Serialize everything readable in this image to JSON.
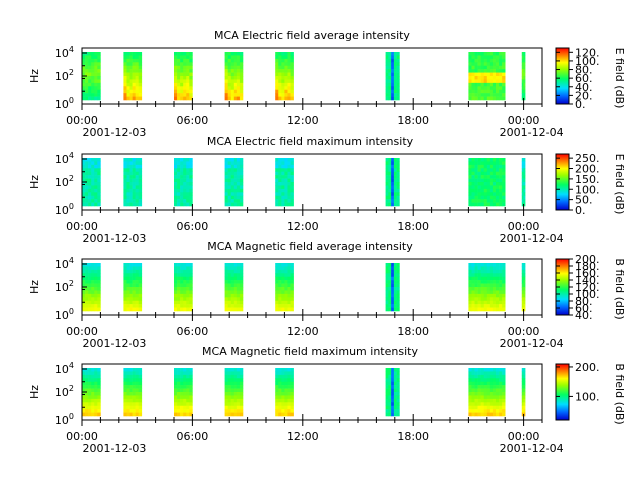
{
  "chart_data": [
    {
      "type": "heatmap",
      "title": "MCA  Electric field average intensity",
      "ylabel": "Hz",
      "colorbar_label": "E field (dB)",
      "colorbar_ticks": [
        "0.",
        "20.",
        "40.",
        "60.",
        "80.",
        "100.",
        "120."
      ],
      "colorbar_range": [
        0,
        130
      ],
      "y_ticks": [
        {
          "base": "10",
          "exp": "0"
        },
        {
          "base": "10",
          "exp": "2"
        },
        {
          "base": "10",
          "exp": "4"
        }
      ],
      "y_scale": "log",
      "x_ticks": [
        "00:00",
        "06:00",
        "12:00",
        "18:00",
        "00:00"
      ],
      "x_dates": [
        "2001-12-03",
        "2001-12-04"
      ],
      "x_range": [
        "2001-12-03 00:00",
        "2001-12-04 01:00"
      ],
      "data_segments": [
        {
          "start": "00:00",
          "end": "01:00",
          "pattern": "mid-high"
        },
        {
          "start": "02:15",
          "end": "03:15",
          "pattern": "peak-low"
        },
        {
          "start": "05:00",
          "end": "06:00",
          "pattern": "peak-low"
        },
        {
          "start": "07:45",
          "end": "08:45",
          "pattern": "peak-low"
        },
        {
          "start": "10:30",
          "end": "11:30",
          "pattern": "peak-low"
        },
        {
          "start": "16:30",
          "end": "17:15",
          "pattern": "spike"
        },
        {
          "start": "21:00",
          "end": "23:00",
          "pattern": "banded"
        },
        {
          "start": "23:55",
          "end": "00:05",
          "pattern": "mid-high"
        }
      ]
    },
    {
      "type": "heatmap",
      "title": "MCA  Electric field maximum intensity",
      "ylabel": "Hz",
      "colorbar_label": "E field (dB)",
      "colorbar_ticks": [
        "0.",
        "50.",
        "100.",
        "150.",
        "200.",
        "250."
      ],
      "colorbar_range": [
        0,
        270
      ],
      "y_ticks": [
        {
          "base": "10",
          "exp": "0"
        },
        {
          "base": "10",
          "exp": "2"
        },
        {
          "base": "10",
          "exp": "4"
        }
      ],
      "y_scale": "log",
      "x_ticks": [
        "00:00",
        "06:00",
        "12:00",
        "18:00",
        "00:00"
      ],
      "x_dates": [
        "2001-12-03",
        "2001-12-04"
      ],
      "x_range": [
        "2001-12-03 00:00",
        "2001-12-04 01:00"
      ],
      "data_segments": [
        {
          "start": "00:00",
          "end": "01:00",
          "pattern": "cyan"
        },
        {
          "start": "02:15",
          "end": "03:15",
          "pattern": "cyan"
        },
        {
          "start": "05:00",
          "end": "06:00",
          "pattern": "cyan"
        },
        {
          "start": "07:45",
          "end": "08:45",
          "pattern": "cyan"
        },
        {
          "start": "10:30",
          "end": "11:30",
          "pattern": "cyan"
        },
        {
          "start": "16:30",
          "end": "17:15",
          "pattern": "spike"
        },
        {
          "start": "21:00",
          "end": "23:00",
          "pattern": "cyan-green"
        },
        {
          "start": "23:55",
          "end": "00:05",
          "pattern": "cyan"
        }
      ]
    },
    {
      "type": "heatmap",
      "title": "MCA  Magnetic field average intensity",
      "ylabel": "Hz",
      "colorbar_label": "B field (dB)",
      "colorbar_ticks": [
        "40.",
        "60.",
        "80.",
        "100.",
        "120.",
        "140.",
        "160.",
        "180.",
        "200."
      ],
      "colorbar_range": [
        40,
        200
      ],
      "y_ticks": [
        {
          "base": "10",
          "exp": "0"
        },
        {
          "base": "10",
          "exp": "2"
        },
        {
          "base": "10",
          "exp": "4"
        }
      ],
      "y_scale": "log",
      "x_ticks": [
        "00:00",
        "06:00",
        "12:00",
        "18:00",
        "00:00"
      ],
      "x_dates": [
        "2001-12-03",
        "2001-12-04"
      ],
      "x_range": [
        "2001-12-03 00:00",
        "2001-12-04 01:00"
      ],
      "data_segments": [
        {
          "start": "00:00",
          "end": "01:00",
          "pattern": "gradient"
        },
        {
          "start": "02:15",
          "end": "03:15",
          "pattern": "gradient"
        },
        {
          "start": "05:00",
          "end": "06:00",
          "pattern": "gradient"
        },
        {
          "start": "07:45",
          "end": "08:45",
          "pattern": "gradient"
        },
        {
          "start": "10:30",
          "end": "11:30",
          "pattern": "gradient"
        },
        {
          "start": "16:30",
          "end": "17:15",
          "pattern": "spike"
        },
        {
          "start": "21:00",
          "end": "23:00",
          "pattern": "gradient"
        },
        {
          "start": "23:55",
          "end": "00:05",
          "pattern": "gradient"
        }
      ]
    },
    {
      "type": "heatmap",
      "title": "MCA  Magnetic field maximum intensity",
      "ylabel": "Hz",
      "colorbar_label": "B field (dB)",
      "colorbar_ticks": [
        "100.",
        "200."
      ],
      "colorbar_range": [
        20,
        210
      ],
      "y_ticks": [
        {
          "base": "10",
          "exp": "0"
        },
        {
          "base": "10",
          "exp": "2"
        },
        {
          "base": "10",
          "exp": "4"
        }
      ],
      "y_scale": "log",
      "x_ticks": [
        "00:00",
        "06:00",
        "12:00",
        "18:00",
        "00:00"
      ],
      "x_dates": [
        "2001-12-03",
        "2001-12-04"
      ],
      "x_range": [
        "2001-12-03 00:00",
        "2001-12-04 01:00"
      ],
      "data_segments": [
        {
          "start": "00:00",
          "end": "01:00",
          "pattern": "gradient-yellow"
        },
        {
          "start": "02:15",
          "end": "03:15",
          "pattern": "gradient-yellow"
        },
        {
          "start": "05:00",
          "end": "06:00",
          "pattern": "gradient-yellow"
        },
        {
          "start": "07:45",
          "end": "08:45",
          "pattern": "gradient-yellow"
        },
        {
          "start": "10:30",
          "end": "11:30",
          "pattern": "gradient-yellow"
        },
        {
          "start": "16:30",
          "end": "17:15",
          "pattern": "spike"
        },
        {
          "start": "21:00",
          "end": "23:00",
          "pattern": "gradient-yellow"
        },
        {
          "start": "23:55",
          "end": "00:05",
          "pattern": "gradient-yellow"
        }
      ]
    }
  ]
}
